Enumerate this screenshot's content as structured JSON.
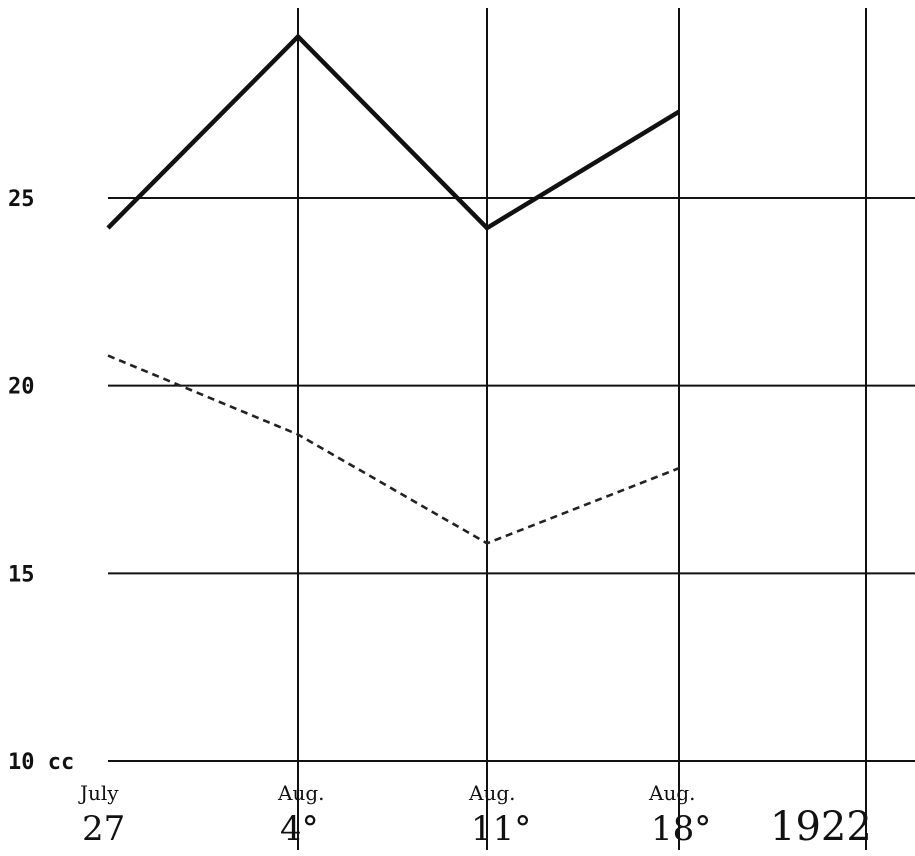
{
  "chart_data": {
    "type": "line",
    "categories": [
      "July 27",
      "Aug. 4",
      "Aug. 11",
      "Aug. 18"
    ],
    "x_ticks": [
      {
        "month": "July",
        "day": "27"
      },
      {
        "month": "Aug.",
        "day": "4°"
      },
      {
        "month": "Aug.",
        "day": "11°"
      },
      {
        "month": "Aug.",
        "day": "18°"
      }
    ],
    "year_label": "1922",
    "y_ticks": [
      "10 cc",
      "15",
      "20",
      "25"
    ],
    "y_tick_values": [
      10,
      15,
      20,
      25
    ],
    "ylim": [
      10,
      30
    ],
    "grid": true,
    "series": [
      {
        "style": "solid",
        "values": [
          24.2,
          29.3,
          24.2,
          27.3
        ]
      },
      {
        "style": "dashed",
        "values": [
          20.8,
          18.7,
          15.8,
          17.8
        ]
      }
    ],
    "colors": {
      "ink": "#111111",
      "background": "#ffffff"
    }
  }
}
